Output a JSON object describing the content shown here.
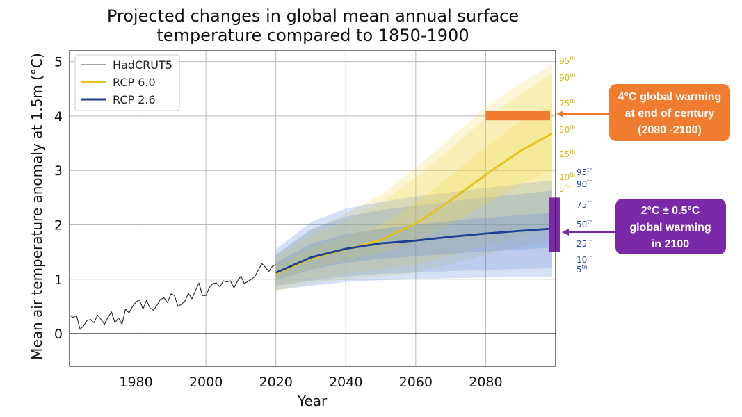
{
  "chart_data": {
    "type": "line",
    "title_lines": [
      "Projected changes in global mean annual surface",
      "temperature compared to 1850-1900"
    ],
    "xlabel": "Year",
    "ylabel": "Mean air temperature anomaly at 1.5m (°C)",
    "xlim": [
      1961,
      2100
    ],
    "ylim": [
      -0.6,
      5.2
    ],
    "xticks": [
      1980,
      2000,
      2020,
      2040,
      2060,
      2080
    ],
    "yticks": [
      0,
      1,
      2,
      3,
      4,
      5
    ],
    "grid": true,
    "legend_position": "top-left",
    "legend": [
      "HadCRUT5",
      "RCP 6.0",
      "RCP 2.6"
    ],
    "colors": {
      "hadcrut": "#222222",
      "rcp60": "#e4c21a",
      "rcp60_band": "#efd640",
      "rcp26": "#1b3f93",
      "rcp26_band": "#5b86d6",
      "orange": "#f07c30",
      "purple": "#7a2aa6",
      "pct_yellow": "#d9b713",
      "pct_blue": "#1f4b9a"
    },
    "series": [
      {
        "name": "HadCRUT5",
        "x": [
          1961,
          1962,
          1963,
          1964,
          1965,
          1966,
          1967,
          1968,
          1969,
          1970,
          1971,
          1972,
          1973,
          1974,
          1975,
          1976,
          1977,
          1978,
          1979,
          1980,
          1981,
          1982,
          1983,
          1984,
          1985,
          1986,
          1987,
          1988,
          1989,
          1990,
          1991,
          1992,
          1993,
          1994,
          1995,
          1996,
          1997,
          1998,
          1999,
          2000,
          2001,
          2002,
          2003,
          2004,
          2005,
          2006,
          2007,
          2008,
          2009,
          2010,
          2011,
          2012,
          2013,
          2014,
          2015,
          2016,
          2017,
          2018,
          2019,
          2020
        ],
        "values": [
          0.34,
          0.3,
          0.33,
          0.08,
          0.14,
          0.24,
          0.26,
          0.2,
          0.34,
          0.26,
          0.17,
          0.3,
          0.4,
          0.2,
          0.29,
          0.17,
          0.45,
          0.38,
          0.5,
          0.58,
          0.62,
          0.45,
          0.61,
          0.47,
          0.43,
          0.52,
          0.63,
          0.66,
          0.57,
          0.73,
          0.7,
          0.5,
          0.54,
          0.6,
          0.74,
          0.64,
          0.79,
          0.93,
          0.7,
          0.7,
          0.85,
          0.92,
          0.93,
          0.86,
          0.97,
          0.95,
          0.97,
          0.84,
          0.96,
          1.06,
          0.92,
          0.96,
          1.0,
          1.05,
          1.17,
          1.29,
          1.22,
          1.14,
          1.24,
          1.27
        ]
      },
      {
        "name": "RCP 6.0",
        "x": [
          2020,
          2030,
          2040,
          2050,
          2060,
          2070,
          2080,
          2090,
          2099
        ],
        "values": [
          1.1,
          1.38,
          1.55,
          1.72,
          2.02,
          2.45,
          2.92,
          3.36,
          3.68
        ],
        "bands": {
          "5-95": {
            "low": [
              0.78,
              0.92,
              1.0,
              1.05,
              1.12,
              1.28,
              1.45,
              1.6,
              1.72
            ],
            "high": [
              1.45,
              1.9,
              2.2,
              2.55,
              3.05,
              3.6,
              4.15,
              4.6,
              4.95
            ]
          },
          "10-90": {
            "low": [
              0.85,
              1.0,
              1.1,
              1.18,
              1.27,
              1.43,
              1.62,
              1.78,
              1.9
            ],
            "high": [
              1.38,
              1.8,
              2.08,
              2.4,
              2.88,
              3.4,
              3.95,
              4.4,
              4.78
            ]
          },
          "25-75": {
            "low": [
              0.98,
              1.2,
              1.35,
              1.48,
              1.68,
              2.0,
              2.38,
              2.75,
              3.02
            ],
            "high": [
              1.25,
              1.58,
              1.78,
              2.0,
              2.4,
              2.9,
              3.43,
              3.9,
              4.22
            ]
          }
        }
      },
      {
        "name": "RCP 2.6",
        "x": [
          2020,
          2030,
          2040,
          2050,
          2060,
          2070,
          2080,
          2090,
          2099
        ],
        "values": [
          1.12,
          1.4,
          1.56,
          1.66,
          1.71,
          1.78,
          1.84,
          1.89,
          1.93
        ],
        "bands": {
          "5-95": {
            "low": [
              0.8,
              0.88,
              0.95,
              0.98,
              1.0,
              1.02,
              1.03,
              1.04,
              1.05
            ],
            "high": [
              1.55,
              2.05,
              2.3,
              2.42,
              2.52,
              2.6,
              2.68,
              2.75,
              2.82
            ]
          },
          "10-90": {
            "low": [
              0.88,
              0.97,
              1.05,
              1.1,
              1.12,
              1.15,
              1.17,
              1.19,
              1.2
            ],
            "high": [
              1.45,
              1.92,
              2.15,
              2.27,
              2.35,
              2.43,
              2.5,
              2.57,
              2.63
            ]
          },
          "25-75": {
            "low": [
              0.98,
              1.18,
              1.3,
              1.38,
              1.42,
              1.47,
              1.51,
              1.55,
              1.58
            ],
            "high": [
              1.3,
              1.65,
              1.83,
              1.93,
              2.0,
              2.07,
              2.13,
              2.18,
              2.22
            ]
          }
        }
      }
    ],
    "percentiles_rcp60": [
      "95th",
      "90th",
      "75th",
      "50th",
      "25th",
      "10th",
      "5th"
    ],
    "percentiles_rcp26": [
      "95th",
      "90th",
      "75th",
      "50th",
      "25th",
      "10th",
      "5th"
    ],
    "markers": [
      {
        "name": "4°C range",
        "x": [
          2080,
          2099
        ],
        "y": [
          3.92,
          4.1
        ]
      },
      {
        "name": "2°C ± 0.5°C range",
        "x": [
          2099,
          2100
        ],
        "y": [
          1.5,
          2.5
        ]
      }
    ],
    "annotations": [
      {
        "lines": [
          "4°C global warming",
          "at end of century",
          "(2080 -2100)"
        ]
      },
      {
        "lines": [
          "2°C ± 0.5°C",
          "global warming",
          "in 2100"
        ]
      }
    ]
  }
}
